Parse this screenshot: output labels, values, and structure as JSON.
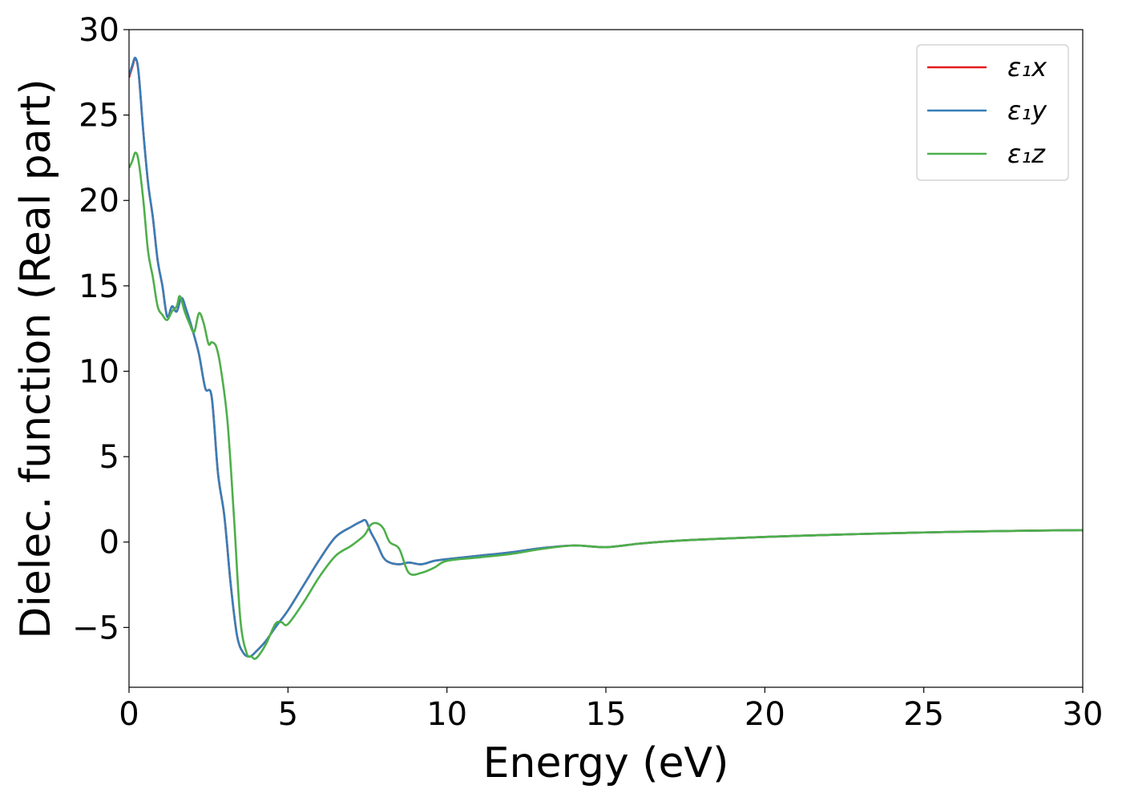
{
  "chart_data": {
    "type": "line",
    "title": "",
    "xlabel": "Energy (eV)",
    "ylabel": "Dielec. function (Real part)",
    "xlim": [
      0,
      30
    ],
    "ylim": [
      -8.5,
      30
    ],
    "xticks": [
      0,
      5,
      10,
      15,
      20,
      25,
      30
    ],
    "xtick_labels": [
      "0",
      "5",
      "10",
      "15",
      "20",
      "25",
      "30"
    ],
    "yticks": [
      -5,
      0,
      5,
      10,
      15,
      20,
      25,
      30
    ],
    "ytick_labels": [
      "−5",
      "0",
      "5",
      "10",
      "15",
      "20",
      "25",
      "30"
    ],
    "grid": false,
    "legend_position": "top-right",
    "series": [
      {
        "name": "ε₁x",
        "color": "#e41a1c",
        "x": [
          0,
          0.1,
          0.2,
          0.3,
          0.45,
          0.6,
          0.75,
          0.9,
          1.05,
          1.2,
          1.35,
          1.5,
          1.65,
          1.8,
          2.0,
          2.2,
          2.4,
          2.6,
          2.8,
          3.0,
          3.2,
          3.4,
          3.6,
          3.8,
          4.0,
          4.3,
          4.6,
          5.0,
          5.5,
          6.0,
          6.5,
          7.0,
          7.3,
          7.45,
          7.6,
          7.8,
          8.0,
          8.2,
          8.5,
          8.8,
          9.2,
          9.6,
          10,
          11,
          12,
          13,
          14,
          15,
          16,
          17,
          18,
          20,
          22,
          24,
          26,
          28,
          30
        ],
        "y": [
          27.2,
          27.8,
          28.3,
          27.5,
          24.0,
          21.0,
          19.0,
          16.5,
          15.0,
          13.2,
          13.8,
          13.5,
          14.3,
          13.6,
          12.4,
          11.0,
          9.0,
          8.5,
          4.0,
          1.5,
          -2.5,
          -5.5,
          -6.5,
          -6.7,
          -6.4,
          -5.8,
          -5.0,
          -4.0,
          -2.5,
          -1.0,
          0.3,
          0.9,
          1.2,
          1.25,
          0.6,
          -0.1,
          -0.9,
          -1.2,
          -1.3,
          -1.2,
          -1.3,
          -1.1,
          -1.0,
          -0.8,
          -0.6,
          -0.35,
          -0.2,
          -0.3,
          -0.1,
          0.05,
          0.15,
          0.3,
          0.42,
          0.52,
          0.6,
          0.66,
          0.7
        ]
      },
      {
        "name": "ε₁y",
        "color": "#377eb8",
        "x": [
          0,
          0.1,
          0.2,
          0.3,
          0.45,
          0.6,
          0.75,
          0.9,
          1.05,
          1.2,
          1.35,
          1.5,
          1.65,
          1.8,
          2.0,
          2.2,
          2.4,
          2.6,
          2.8,
          3.0,
          3.2,
          3.4,
          3.6,
          3.8,
          4.0,
          4.3,
          4.6,
          5.0,
          5.5,
          6.0,
          6.5,
          7.0,
          7.3,
          7.45,
          7.6,
          7.8,
          8.0,
          8.2,
          8.5,
          8.8,
          9.2,
          9.6,
          10,
          11,
          12,
          13,
          14,
          15,
          16,
          17,
          18,
          20,
          22,
          24,
          26,
          28,
          30
        ],
        "y": [
          27.3,
          27.9,
          28.35,
          27.5,
          24.0,
          21.0,
          19.0,
          16.5,
          15.0,
          13.2,
          13.8,
          13.5,
          14.3,
          13.6,
          12.4,
          11.0,
          9.0,
          8.5,
          4.0,
          1.5,
          -2.5,
          -5.5,
          -6.5,
          -6.7,
          -6.4,
          -5.8,
          -5.0,
          -4.0,
          -2.5,
          -1.0,
          0.3,
          0.9,
          1.2,
          1.25,
          0.6,
          -0.1,
          -0.9,
          -1.2,
          -1.3,
          -1.2,
          -1.3,
          -1.1,
          -1.0,
          -0.8,
          -0.6,
          -0.35,
          -0.2,
          -0.3,
          -0.1,
          0.05,
          0.15,
          0.3,
          0.42,
          0.52,
          0.6,
          0.66,
          0.7
        ]
      },
      {
        "name": "ε₁z",
        "color": "#4daf4a",
        "x": [
          0,
          0.1,
          0.2,
          0.3,
          0.45,
          0.6,
          0.75,
          0.9,
          1.05,
          1.2,
          1.35,
          1.5,
          1.6,
          1.75,
          1.9,
          2.05,
          2.2,
          2.35,
          2.5,
          2.6,
          2.75,
          2.9,
          3.1,
          3.3,
          3.5,
          3.7,
          3.85,
          4.0,
          4.3,
          4.6,
          4.8,
          5.0,
          5.5,
          6.0,
          6.5,
          7.0,
          7.4,
          7.6,
          7.8,
          8.0,
          8.2,
          8.5,
          8.8,
          9.2,
          9.6,
          10,
          11,
          12,
          13,
          14,
          15,
          16,
          17,
          18,
          20,
          22,
          24,
          26,
          28,
          30
        ],
        "y": [
          21.9,
          22.3,
          22.8,
          22.3,
          20.0,
          17.0,
          15.5,
          13.8,
          13.3,
          13.0,
          13.5,
          13.8,
          14.4,
          13.5,
          12.8,
          12.3,
          13.4,
          12.8,
          11.6,
          11.7,
          11.4,
          10.0,
          7.0,
          1.5,
          -4.5,
          -6.5,
          -6.7,
          -6.8,
          -6.0,
          -4.8,
          -4.7,
          -4.8,
          -3.5,
          -2.0,
          -0.8,
          -0.2,
          0.4,
          1.0,
          1.1,
          0.8,
          0.0,
          -0.4,
          -1.8,
          -1.8,
          -1.5,
          -1.1,
          -0.9,
          -0.7,
          -0.4,
          -0.2,
          -0.3,
          -0.1,
          0.05,
          0.15,
          0.3,
          0.42,
          0.52,
          0.6,
          0.66,
          0.7
        ]
      }
    ]
  }
}
